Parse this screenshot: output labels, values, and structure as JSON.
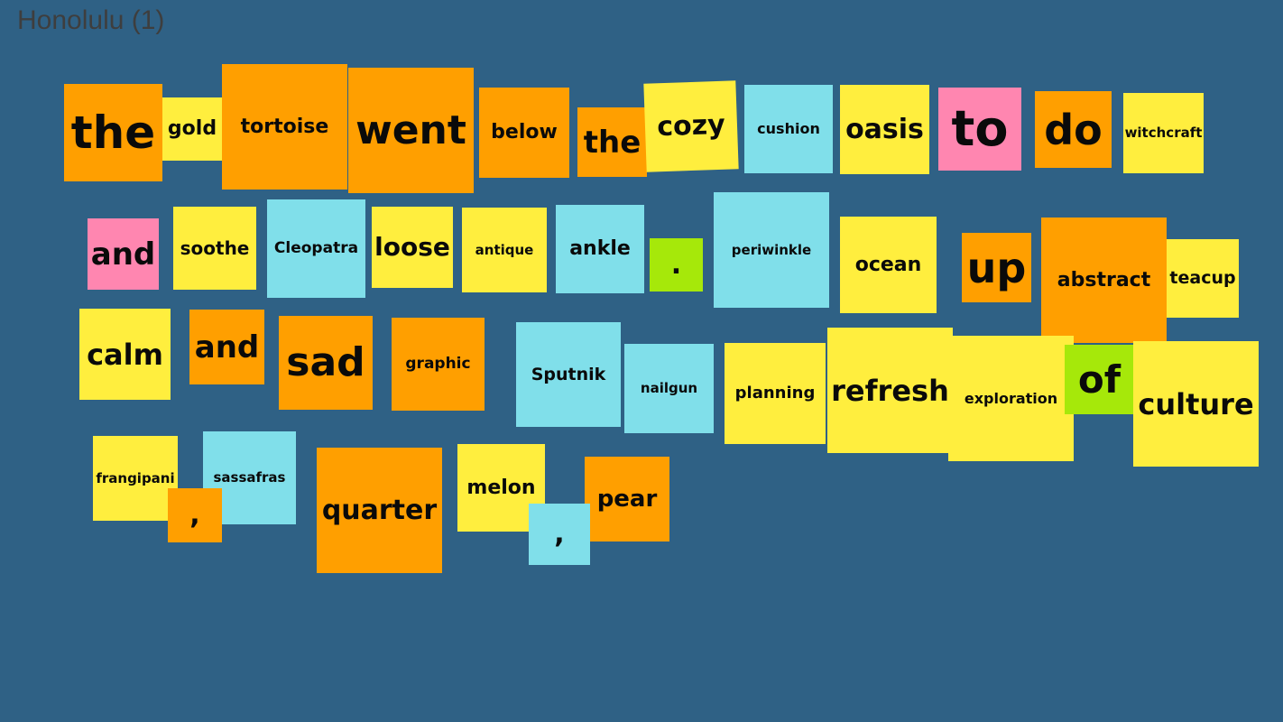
{
  "board": {
    "title": "Honolulu (1)"
  },
  "colors": {
    "background": "#2f6185",
    "orange": "#ff9f00",
    "yellow": "#ffee3e",
    "blue": "#80dfea",
    "pink": "#ff86b0",
    "green": "#a6e80a"
  },
  "tiles": [
    {
      "id": "the-1",
      "text": "the",
      "color": "orange"
    },
    {
      "id": "gold",
      "text": "gold",
      "color": "yellow"
    },
    {
      "id": "tortoise",
      "text": "tortoise",
      "color": "orange"
    },
    {
      "id": "went",
      "text": "went",
      "color": "orange"
    },
    {
      "id": "below",
      "text": "below",
      "color": "orange"
    },
    {
      "id": "the-2",
      "text": "the",
      "color": "orange"
    },
    {
      "id": "cozy",
      "text": "cozy",
      "color": "yellow"
    },
    {
      "id": "cushion",
      "text": "cushion",
      "color": "blue"
    },
    {
      "id": "oasis",
      "text": "oasis",
      "color": "yellow"
    },
    {
      "id": "to",
      "text": "to",
      "color": "pink"
    },
    {
      "id": "do",
      "text": "do",
      "color": "orange"
    },
    {
      "id": "witchcraft",
      "text": "witchcraft",
      "color": "yellow"
    },
    {
      "id": "and-1",
      "text": "and",
      "color": "pink"
    },
    {
      "id": "soothe",
      "text": "soothe",
      "color": "yellow"
    },
    {
      "id": "cleopatra",
      "text": "Cleopatra",
      "color": "blue"
    },
    {
      "id": "loose",
      "text": "loose",
      "color": "yellow"
    },
    {
      "id": "antique",
      "text": "antique",
      "color": "yellow"
    },
    {
      "id": "ankle",
      "text": "ankle",
      "color": "blue"
    },
    {
      "id": "period",
      "text": ".",
      "color": "green"
    },
    {
      "id": "periwinkle",
      "text": "periwinkle",
      "color": "blue"
    },
    {
      "id": "ocean",
      "text": "ocean",
      "color": "yellow"
    },
    {
      "id": "up",
      "text": "up",
      "color": "orange"
    },
    {
      "id": "abstract",
      "text": "abstract",
      "color": "orange"
    },
    {
      "id": "teacup",
      "text": "teacup",
      "color": "yellow"
    },
    {
      "id": "calm",
      "text": "calm",
      "color": "yellow"
    },
    {
      "id": "and-2",
      "text": "and",
      "color": "orange"
    },
    {
      "id": "sad",
      "text": "sad",
      "color": "orange"
    },
    {
      "id": "graphic",
      "text": "graphic",
      "color": "orange"
    },
    {
      "id": "sputnik",
      "text": "Sputnik",
      "color": "blue"
    },
    {
      "id": "nailgun",
      "text": "nailgun",
      "color": "blue"
    },
    {
      "id": "planning",
      "text": "planning",
      "color": "yellow"
    },
    {
      "id": "refresh",
      "text": "refresh",
      "color": "yellow"
    },
    {
      "id": "exploration",
      "text": "exploration",
      "color": "yellow"
    },
    {
      "id": "of",
      "text": "of",
      "color": "green"
    },
    {
      "id": "culture",
      "text": "culture",
      "color": "yellow"
    },
    {
      "id": "frangipani",
      "text": "frangipani",
      "color": "yellow"
    },
    {
      "id": "sassafras",
      "text": "sassafras",
      "color": "blue"
    },
    {
      "id": "comma-1",
      "text": ",",
      "color": "orange"
    },
    {
      "id": "quarter",
      "text": "quarter",
      "color": "orange"
    },
    {
      "id": "melon",
      "text": "melon",
      "color": "yellow"
    },
    {
      "id": "pear",
      "text": "pear",
      "color": "orange"
    },
    {
      "id": "comma-2",
      "text": ",",
      "color": "blue"
    }
  ]
}
